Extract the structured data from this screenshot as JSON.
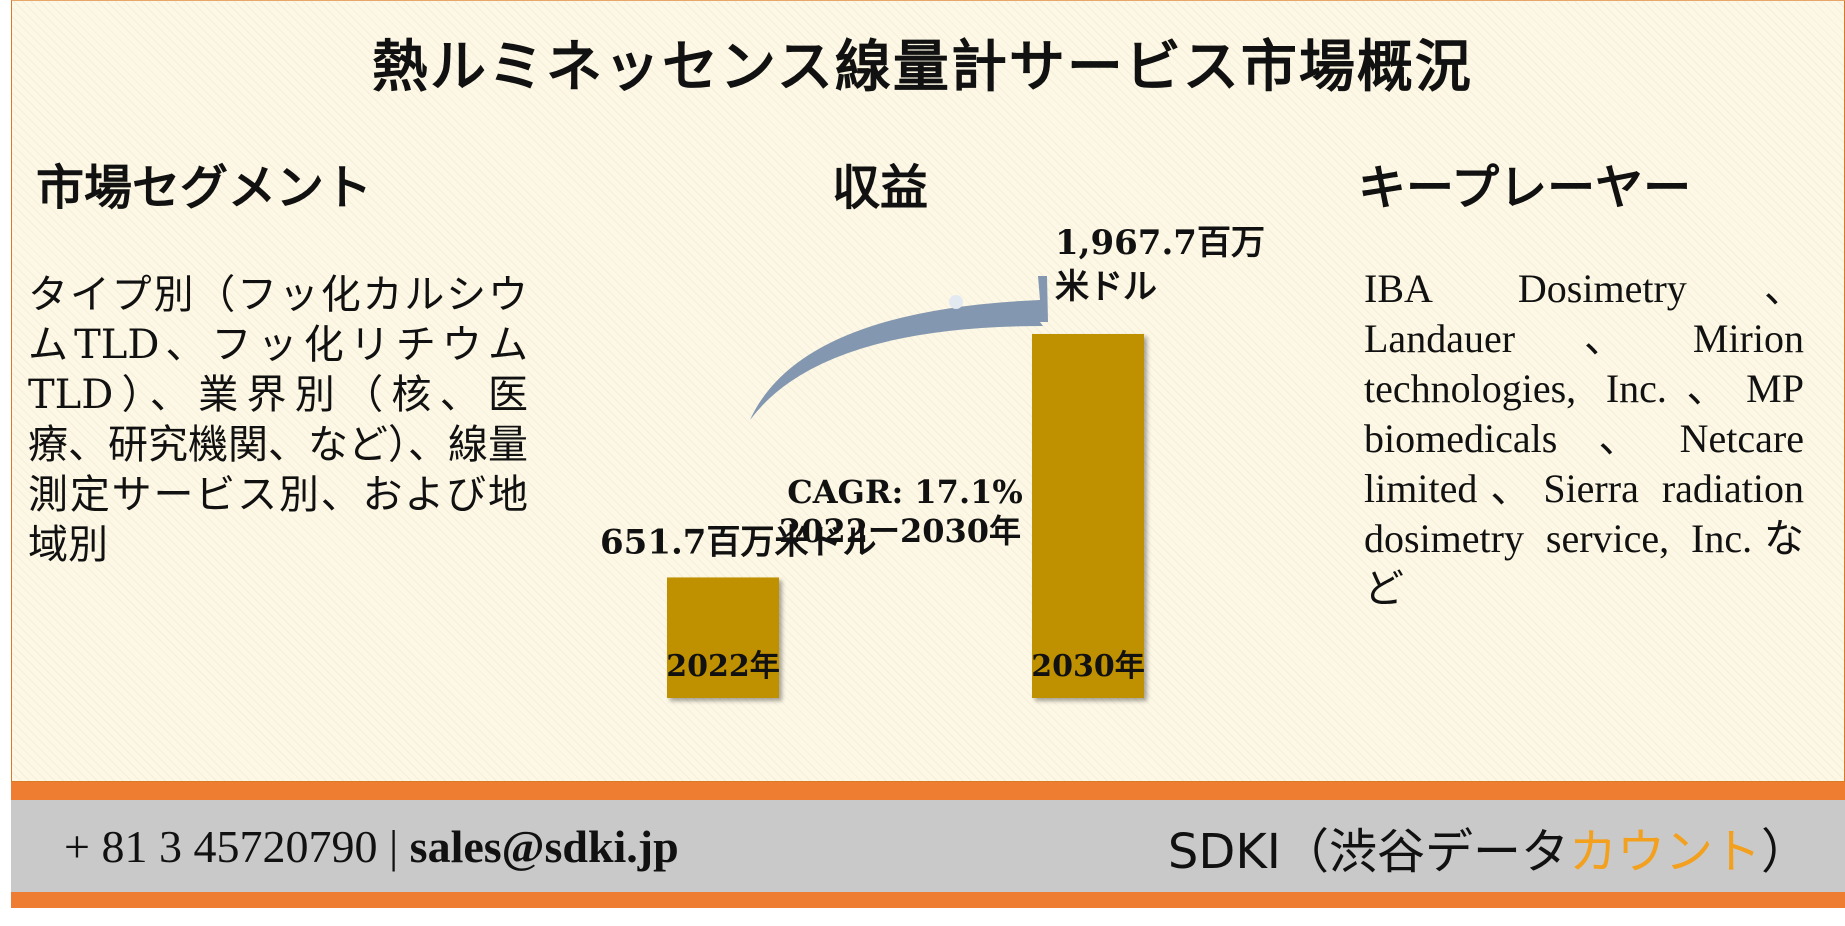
{
  "title": "熱ルミネッセンス線量計サービス市場概況",
  "sections": {
    "segment": {
      "heading": "市場セグメント",
      "text": "タイプ別（フッ化カルシウムTLD、フッ化リチウムTLD）、業界別（核、医療、研究機関、など）、線量測定サービス別、および地域別"
    },
    "revenue": {
      "heading": "収益"
    },
    "key_players": {
      "heading": "キープレーヤー",
      "text": "IBA Dosimetry、Landauer、Mirion technologies, Inc.、MP biomedicals、Netcare limited、Sierra radiation dosimetry service, Inc.など"
    }
  },
  "chart_data": {
    "type": "bar",
    "categories": [
      "2022年",
      "2030年"
    ],
    "values": [
      651.7,
      1967.7
    ],
    "data_labels": [
      "651.7百万米ドル",
      "1,967.7百万米ドル"
    ],
    "annotation": {
      "line1": "CAGR: 17.1%",
      "line2": "2022ー2030年"
    },
    "bar_color": "#bf9000",
    "arrow_color": "#8497b0"
  },
  "footer": {
    "phone": "+ 81 3 45720790",
    "separator": " | ",
    "email": "sales@sdki.jp",
    "brand_prefix": "SDKI（渋谷データ",
    "brand_accent": "カウント",
    "brand_suffix": "）",
    "accent_color": "#f2a01e",
    "bar_color": "#ee7d31",
    "band_color": "#c9c9c9"
  }
}
